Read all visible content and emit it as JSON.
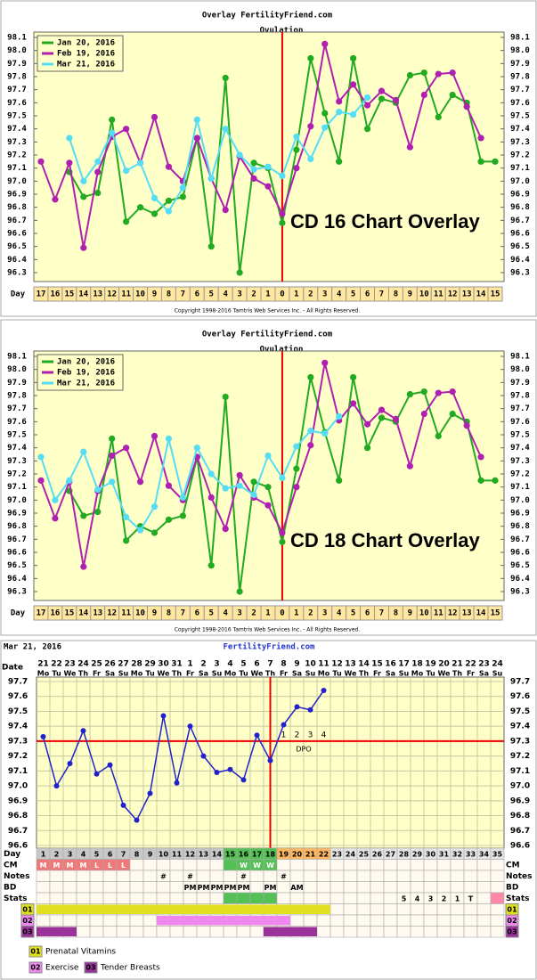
{
  "chart_data": [
    {
      "type": "overlay",
      "title": "Overlay FertilityFriend.com",
      "subtitle": "Ovulation",
      "x_label": "Day",
      "categories": [
        "17",
        "16",
        "15",
        "14",
        "13",
        "12",
        "11",
        "10",
        "9",
        "8",
        "7",
        "6",
        "5",
        "4",
        "3",
        "2",
        "1",
        "0",
        "1",
        "2",
        "3",
        "4",
        "5",
        "6",
        "7",
        "8",
        "9",
        "10",
        "11",
        "12",
        "13",
        "14",
        "15"
      ],
      "marker_category": "0",
      "marker_color": "#ee0000",
      "legend": "upper left",
      "ylim": [
        96.3,
        98.1
      ],
      "yticks": [
        96.3,
        96.4,
        96.5,
        96.6,
        96.7,
        96.8,
        96.9,
        {
          "value": 97,
          "label": "97.0"
        },
        97.1,
        97.2,
        97.3,
        97.4,
        97.5,
        97.6,
        97.7,
        97.8,
        97.9,
        {
          "value": 98,
          "label": "98.0"
        },
        98.1
      ],
      "series": [
        {
          "name": "Jan 20, 2016",
          "color": "#22aa22",
          "values": [
            null,
            null,
            97.07,
            96.88,
            96.91,
            97.47,
            96.69,
            96.8,
            96.75,
            96.85,
            96.88,
            97.33,
            96.5,
            97.79,
            96.3,
            97.14,
            97.1,
            96.68,
            97.24,
            97.94,
            97.52,
            97.15,
            97.94,
            97.4,
            97.63,
            97.6,
            97.81,
            97.83,
            97.49,
            97.66,
            97.6,
            97.15,
            97.15
          ]
        },
        {
          "name": "Feb 19, 2016",
          "color": "#b020b0",
          "values": [
            97.15,
            96.86,
            97.14,
            96.49,
            97.07,
            97.34,
            97.4,
            97.14,
            97.49,
            97.11,
            97.0,
            97.33,
            97.02,
            96.78,
            97.19,
            97.02,
            96.96,
            96.75,
            97.1,
            97.42,
            98.05,
            97.61,
            97.74,
            97.58,
            97.69,
            97.62,
            97.26,
            97.66,
            97.82,
            97.83,
            97.57,
            97.33,
            null
          ]
        },
        {
          "name": "Mar 21, 2016",
          "color": "#55ddf5",
          "values": [
            null,
            null,
            97.33,
            97.0,
            97.15,
            97.37,
            97.08,
            97.14,
            96.87,
            96.77,
            96.95,
            97.47,
            97.02,
            97.4,
            97.2,
            97.09,
            97.11,
            97.04,
            97.34,
            97.17,
            97.41,
            97.53,
            97.51,
            97.64,
            null,
            null,
            null,
            null,
            null,
            null,
            null,
            null,
            null
          ]
        }
      ],
      "annotation": "CD 16 Chart Overlay",
      "copyright": "Copyright 1998-2016 Tamtris Web Services Inc. - All Rights Reserved."
    },
    {
      "type": "overlay",
      "title": "Overlay FertilityFriend.com",
      "subtitle": "Ovulation",
      "x_label": "Day",
      "categories": [
        "17",
        "16",
        "15",
        "14",
        "13",
        "12",
        "11",
        "10",
        "9",
        "8",
        "7",
        "6",
        "5",
        "4",
        "3",
        "2",
        "1",
        "0",
        "1",
        "2",
        "3",
        "4",
        "5",
        "6",
        "7",
        "8",
        "9",
        "10",
        "11",
        "12",
        "13",
        "14",
        "15"
      ],
      "marker_category": "0",
      "marker_color": "#ee0000",
      "legend": "upper left",
      "ylim": [
        96.3,
        98.1
      ],
      "yticks": [
        96.3,
        96.4,
        96.5,
        96.6,
        96.7,
        96.8,
        96.9,
        {
          "value": 97,
          "label": "97.0"
        },
        97.1,
        97.2,
        97.3,
        97.4,
        97.5,
        97.6,
        97.7,
        97.8,
        97.9,
        {
          "value": 98,
          "label": "98.0"
        },
        98.1
      ],
      "series": [
        {
          "name": "Jan 20, 2016",
          "color": "#22aa22",
          "values": [
            null,
            null,
            97.07,
            96.88,
            96.91,
            97.47,
            96.69,
            96.8,
            96.75,
            96.85,
            96.88,
            97.33,
            96.5,
            97.79,
            96.3,
            97.14,
            97.1,
            96.68,
            97.24,
            97.94,
            97.52,
            97.15,
            97.94,
            97.4,
            97.63,
            97.6,
            97.81,
            97.83,
            97.49,
            97.66,
            97.6,
            97.15,
            97.15
          ]
        },
        {
          "name": "Feb 19, 2016",
          "color": "#b020b0",
          "values": [
            97.15,
            96.86,
            97.14,
            96.49,
            97.07,
            97.34,
            97.4,
            97.14,
            97.49,
            97.11,
            97.0,
            97.33,
            97.02,
            96.78,
            97.19,
            97.02,
            96.96,
            96.75,
            97.1,
            97.42,
            98.05,
            97.61,
            97.74,
            97.58,
            97.69,
            97.62,
            97.26,
            97.66,
            97.82,
            97.83,
            97.57,
            97.33,
            null
          ]
        },
        {
          "name": "Mar 21, 2016",
          "color": "#55ddf5",
          "values": [
            97.33,
            97.0,
            97.15,
            97.37,
            97.08,
            97.14,
            96.87,
            96.77,
            96.95,
            97.47,
            97.02,
            97.4,
            97.2,
            97.09,
            97.11,
            97.04,
            97.34,
            97.17,
            97.41,
            97.53,
            97.51,
            97.64,
            null,
            null,
            null,
            null,
            null,
            null,
            null,
            null,
            null,
            null,
            null
          ]
        }
      ],
      "annotation": "CD 18 Chart Overlay",
      "copyright": "Copyright 1998-2016 Tamtris Web Services Inc. - All Rights Reserved."
    },
    {
      "type": "fertility",
      "date": "Mar 21, 2016",
      "title": "FertilityFriend.com",
      "row_labels": {
        "date": "Date",
        "day": "Day",
        "cm": "CM",
        "notes": "Notes",
        "bd": "BD",
        "stats": "Stats"
      },
      "dates": [
        "21",
        "22",
        "23",
        "24",
        "25",
        "26",
        "27",
        "28",
        "29",
        "30",
        "31",
        "1",
        "2",
        "3",
        "4",
        "5",
        "6",
        "7",
        "8",
        "9",
        "10",
        "11",
        "12",
        "13",
        "14",
        "15",
        "16",
        "17",
        "18",
        "19",
        "20",
        "21",
        "22",
        "23",
        "24"
      ],
      "weekdays": [
        "Mo",
        "Tu",
        "We",
        "Th",
        "Fr",
        "Sa",
        "Su",
        "Mo",
        "Tu",
        "We",
        "Th",
        "Fr",
        "Sa",
        "Su",
        "Mo",
        "Tu",
        "We",
        "Th",
        "Fr",
        "Sa",
        "Su",
        "Mo",
        "Tu",
        "We",
        "Th",
        "Fr",
        "Sa",
        "Su",
        "Mo",
        "Tu",
        "We",
        "Th",
        "Fr",
        "Sa",
        "Su"
      ],
      "cycle_days": [
        1,
        2,
        3,
        4,
        5,
        6,
        7,
        8,
        9,
        10,
        11,
        12,
        13,
        14,
        15,
        16,
        17,
        18,
        19,
        20,
        21,
        22,
        23,
        24,
        25,
        26,
        27,
        28,
        29,
        30,
        31,
        32,
        33,
        34,
        35
      ],
      "day_colors": [
        "#c8c8c8",
        "#c8c8c8",
        "#c8c8c8",
        "#c8c8c8",
        "#c8c8c8",
        "#c8c8c8",
        "#c8c8c8",
        "#c8c8c8",
        "#c8c8c8",
        "#c8c8c8",
        "#c8c8c8",
        "#c8c8c8",
        "#c8c8c8",
        "#c8c8c8",
        "#55c055",
        "#55c055",
        "#55c055",
        "#55c055",
        "#ffb860",
        "#ffb860",
        "#ffb860",
        "#ffb860",
        "#e4e4e4",
        "#e4e4e4",
        "#e4e4e4",
        "#e4e4e4",
        "#e4e4e4",
        "#e4e4e4",
        "#e4e4e4",
        "#e4e4e4",
        "#e4e4e4",
        "#e4e4e4",
        "#e4e4e4",
        "#e4e4e4",
        "#e4e4e4"
      ],
      "values": [
        97.33,
        97.0,
        97.15,
        97.37,
        97.08,
        97.14,
        96.87,
        96.77,
        96.95,
        97.47,
        97.02,
        97.4,
        97.2,
        97.09,
        97.11,
        97.04,
        97.34,
        97.17,
        97.41,
        97.53,
        97.51,
        97.64,
        null,
        null,
        null,
        null,
        null,
        null,
        null,
        null,
        null,
        null,
        null,
        null,
        null
      ],
      "color": "#2222cc",
      "ylim": [
        96.6,
        97.7
      ],
      "yticks": [
        96.6,
        96.7,
        96.8,
        96.9,
        {
          "value": 97,
          "label": "97.0"
        },
        97.1,
        97.2,
        97.3,
        97.4,
        97.5,
        97.6,
        97.7
      ],
      "grid": true,
      "coverline": 97.3,
      "ovulation_day": 18,
      "line_color": "#ee0000",
      "dpo": [
        "1",
        "2",
        "3",
        "4"
      ],
      "dpo_label": "DPO",
      "cm": [
        "M",
        "M",
        "M",
        "M",
        "L",
        "L",
        "L",
        null,
        null,
        null,
        null,
        null,
        null,
        null,
        null,
        "W",
        "W",
        "W",
        null,
        null,
        null,
        null,
        null,
        null,
        null,
        null,
        null,
        null,
        null,
        null,
        null,
        null,
        null,
        null,
        null
      ],
      "cm_colors": [
        "#f07878",
        "#f07878",
        "#f07878",
        "#f07878",
        "#f07878",
        "#f07878",
        "#f07878",
        null,
        null,
        null,
        null,
        null,
        null,
        null,
        "#55c055",
        "#55c055",
        "#55c055",
        "#55c055",
        null,
        null,
        null,
        null,
        null,
        null,
        null,
        null,
        null,
        null,
        null,
        null,
        null,
        null,
        null,
        null,
        null
      ],
      "notes": [
        null,
        null,
        null,
        null,
        null,
        null,
        null,
        null,
        null,
        "#",
        null,
        "#",
        null,
        null,
        null,
        "#",
        null,
        null,
        "#",
        null,
        null,
        null,
        null,
        null,
        null,
        null,
        null,
        null,
        null,
        null,
        null,
        null,
        null,
        null,
        null
      ],
      "bd": [
        null,
        null,
        null,
        null,
        null,
        null,
        null,
        null,
        null,
        null,
        null,
        "PM",
        "PM",
        "PM",
        "PM",
        "PM",
        null,
        "PM",
        null,
        "AM",
        null,
        null,
        null,
        null,
        null,
        null,
        null,
        null,
        null,
        null,
        null,
        null,
        null,
        null,
        null
      ],
      "stats": [
        null,
        null,
        null,
        null,
        null,
        null,
        null,
        null,
        null,
        null,
        null,
        null,
        null,
        null,
        null,
        null,
        null,
        null,
        null,
        null,
        null,
        null,
        null,
        null,
        null,
        null,
        null,
        "5",
        "4",
        "3",
        "2",
        "1",
        "T",
        null,
        null
      ],
      "stats_colors": [
        null,
        null,
        null,
        null,
        null,
        null,
        null,
        null,
        null,
        null,
        null,
        null,
        null,
        null,
        "#55c055",
        "#55c055",
        "#55c055",
        "#55c055",
        null,
        null,
        null,
        null,
        null,
        null,
        null,
        null,
        null,
        null,
        null,
        null,
        null,
        null,
        null,
        null,
        "#ff88a8"
      ],
      "bars": [
        {
          "code": "01",
          "name": "Prenatal Vitamins",
          "color": "#e0e020",
          "spans": [
            [
              1,
              22
            ]
          ]
        },
        {
          "code": "02",
          "name": "Exercise",
          "color": "#ee88ee",
          "spans": [
            [
              10,
              19
            ]
          ]
        },
        {
          "code": "03",
          "name": "Tender Breasts",
          "color": "#993399",
          "spans": [
            [
              1,
              3
            ],
            [
              18,
              21
            ]
          ]
        }
      ]
    }
  ]
}
